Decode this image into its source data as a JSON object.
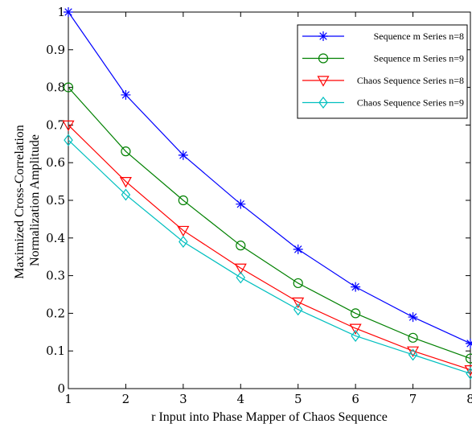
{
  "chart_data": {
    "type": "line",
    "title": "",
    "xlabel": "r Input into Phase Mapper of Chaos Sequence",
    "ylabel_lines": [
      "Maximized Cross-Correlation",
      "Normalization Amplitude"
    ],
    "xlim": [
      1,
      8
    ],
    "ylim": [
      0,
      1
    ],
    "x_ticks": [
      "1",
      "2",
      "3",
      "4",
      "5",
      "6",
      "7",
      "8"
    ],
    "y_ticks": [
      "0",
      "0.1",
      "0.2",
      "0.3",
      "0.4",
      "0.5",
      "0.6",
      "0.7",
      "0.8",
      "0.9",
      "1"
    ],
    "grid": false,
    "legend_position": "top-right",
    "x": [
      1,
      2,
      3,
      4,
      5,
      6,
      7,
      8
    ],
    "series": [
      {
        "name": "Sequence m Series n=8",
        "color": "#0000ff",
        "marker": "star",
        "values": [
          1.0,
          0.78,
          0.62,
          0.49,
          0.37,
          0.27,
          0.19,
          0.12
        ]
      },
      {
        "name": "Sequence m Series n=9",
        "color": "#008000",
        "marker": "circle",
        "values": [
          0.8,
          0.63,
          0.5,
          0.38,
          0.28,
          0.2,
          0.135,
          0.08
        ]
      },
      {
        "name": "Chaos Sequence Series n=8",
        "color": "#ff0000",
        "marker": "triangle-down",
        "values": [
          0.7,
          0.55,
          0.42,
          0.32,
          0.23,
          0.16,
          0.1,
          0.05
        ]
      },
      {
        "name": "Chaos Sequence Series n=9",
        "color": "#00bfbf",
        "marker": "diamond",
        "values": [
          0.66,
          0.515,
          0.39,
          0.295,
          0.21,
          0.14,
          0.09,
          0.04
        ]
      }
    ]
  }
}
